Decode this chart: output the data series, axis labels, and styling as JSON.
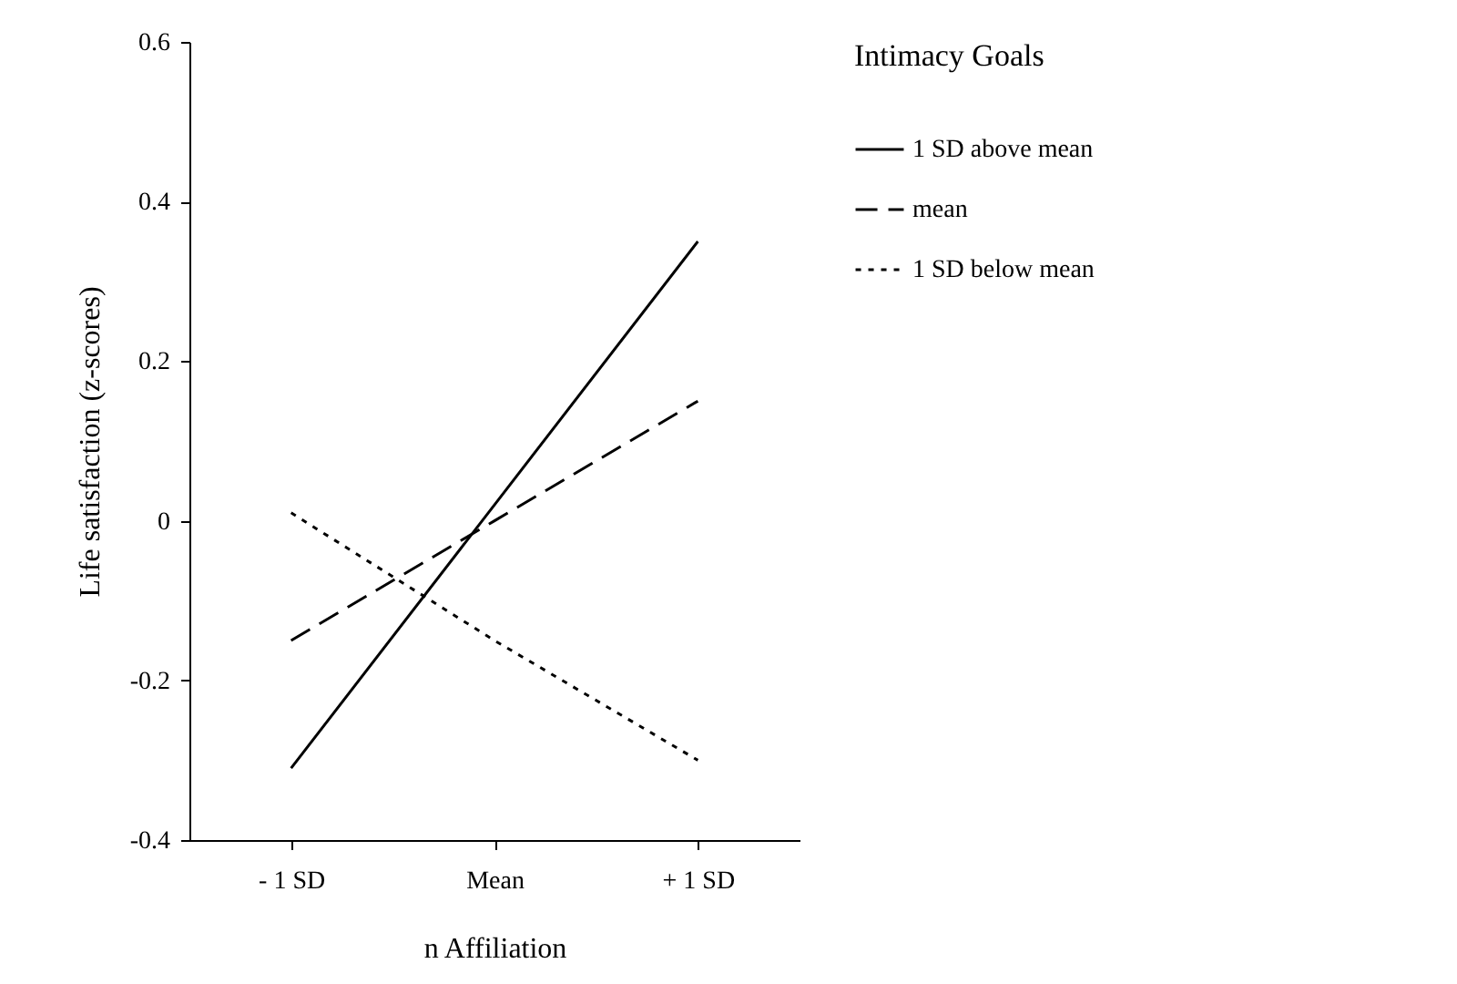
{
  "chart_data": {
    "type": "line",
    "xlabel": "n Affiliation",
    "ylabel": "Life satisfaction (z-scores)",
    "legend_title": "Intimacy Goals",
    "categories": [
      "- 1 SD",
      "Mean",
      "+ 1 SD"
    ],
    "series": [
      {
        "name": "1 SD above mean",
        "color": "#000000",
        "line_style": "solid",
        "values": [
          -0.31,
          0.02,
          0.35
        ]
      },
      {
        "name": "mean",
        "color": "#000000",
        "line_style": "dashed",
        "values": [
          -0.15,
          0.0,
          0.15
        ]
      },
      {
        "name": "1 SD below mean",
        "color": "#000000",
        "line_style": "dotted",
        "values": [
          0.01,
          -0.15,
          -0.3
        ]
      }
    ],
    "ylim": [
      -0.4,
      0.6
    ],
    "yticks": [
      -0.4,
      -0.2,
      0,
      0.2,
      0.4,
      0.6
    ],
    "grid": false,
    "legend": "right",
    "marker": "none"
  }
}
